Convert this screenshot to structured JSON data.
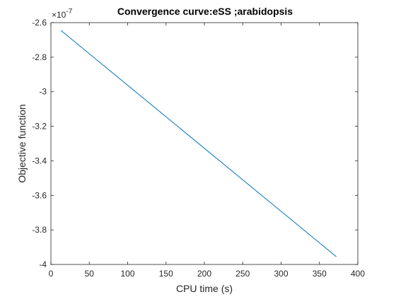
{
  "chart_data": {
    "type": "line",
    "title": "Convergence curve:eSS ;arabidopsis",
    "xlabel": "CPU time (s)",
    "ylabel": "Objective function",
    "y_exponent_base": "×10",
    "y_exponent_power": "-7",
    "xlim": [
      0,
      400
    ],
    "ylim": [
      -4.0,
      -2.6
    ],
    "x_ticks": [
      0,
      50,
      100,
      150,
      200,
      250,
      300,
      350,
      400
    ],
    "x_tick_labels": [
      "0",
      "50",
      "100",
      "150",
      "200",
      "250",
      "300",
      "350",
      "400"
    ],
    "y_ticks": [
      -4.0,
      -3.8,
      -3.6,
      -3.4,
      -3.2,
      -3.0,
      -2.8,
      -2.6
    ],
    "y_tick_labels": [
      "-4",
      "-3.8",
      "-3.6",
      "-3.4",
      "-3.2",
      "-3",
      "-2.8",
      "-2.6"
    ],
    "grid": false,
    "series": [
      {
        "color": "#0072BD",
        "x": [
          13,
          372
        ],
        "y": [
          -2.645,
          -3.955
        ]
      }
    ]
  }
}
